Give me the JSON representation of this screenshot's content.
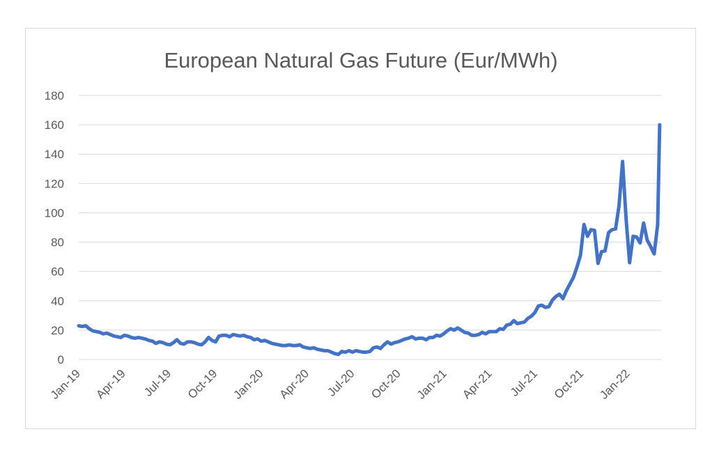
{
  "chart_data": {
    "type": "line",
    "title": "European Natural Gas Future (Eur/MWh)",
    "xlabel": "",
    "ylabel": "",
    "ylim": [
      0,
      180
    ],
    "y_ticks": [
      "0",
      "20",
      "40",
      "60",
      "80",
      "100",
      "120",
      "140",
      "160",
      "180"
    ],
    "x_tick_labels": [
      "Jan-19",
      "Apr-19",
      "Jul-19",
      "Oct-19",
      "Jan-20",
      "Apr-20",
      "Jul-20",
      "Oct-20",
      "Jan-21",
      "Apr-21",
      "Jul-21",
      "Oct-21",
      "Jan-22"
    ],
    "x_unit": "month",
    "x_start": "2019-01",
    "x_end": "2022-03",
    "grid": true,
    "legend": "none",
    "series": [
      {
        "color": "#4472c4",
        "points": [
          [
            "2019-01-01",
            23
          ],
          [
            "2019-01-08",
            22.5
          ],
          [
            "2019-01-15",
            23
          ],
          [
            "2019-01-22",
            21
          ],
          [
            "2019-01-29",
            19.5
          ],
          [
            "2019-02-05",
            19
          ],
          [
            "2019-02-12",
            18.5
          ],
          [
            "2019-02-19",
            17.5
          ],
          [
            "2019-02-26",
            18
          ],
          [
            "2019-03-05",
            17
          ],
          [
            "2019-03-12",
            16
          ],
          [
            "2019-03-19",
            15.5
          ],
          [
            "2019-03-26",
            15
          ],
          [
            "2019-04-02",
            16.5
          ],
          [
            "2019-04-09",
            16
          ],
          [
            "2019-04-16",
            15
          ],
          [
            "2019-04-23",
            14.5
          ],
          [
            "2019-04-30",
            15
          ],
          [
            "2019-05-07",
            14.5
          ],
          [
            "2019-05-14",
            14
          ],
          [
            "2019-05-21",
            13
          ],
          [
            "2019-05-28",
            12.5
          ],
          [
            "2019-06-04",
            11
          ],
          [
            "2019-06-11",
            12
          ],
          [
            "2019-06-18",
            11.5
          ],
          [
            "2019-06-25",
            10.5
          ],
          [
            "2019-07-02",
            10
          ],
          [
            "2019-07-09",
            11.5
          ],
          [
            "2019-07-16",
            13.5
          ],
          [
            "2019-07-23",
            11
          ],
          [
            "2019-07-30",
            10.5
          ],
          [
            "2019-08-06",
            12
          ],
          [
            "2019-08-13",
            12
          ],
          [
            "2019-08-20",
            11.5
          ],
          [
            "2019-08-27",
            10.5
          ],
          [
            "2019-09-03",
            10
          ],
          [
            "2019-09-10",
            12
          ],
          [
            "2019-09-17",
            15
          ],
          [
            "2019-09-24",
            13
          ],
          [
            "2019-10-01",
            12
          ],
          [
            "2019-10-08",
            16
          ],
          [
            "2019-10-15",
            16.5
          ],
          [
            "2019-10-22",
            16.5
          ],
          [
            "2019-10-29",
            15.5
          ],
          [
            "2019-11-05",
            17
          ],
          [
            "2019-11-12",
            16.5
          ],
          [
            "2019-11-19",
            16
          ],
          [
            "2019-11-26",
            16.5
          ],
          [
            "2019-12-03",
            15.5
          ],
          [
            "2019-12-10",
            15
          ],
          [
            "2019-12-17",
            13.5
          ],
          [
            "2019-12-24",
            14
          ],
          [
            "2019-12-31",
            12.5
          ],
          [
            "2020-01-07",
            13
          ],
          [
            "2020-01-14",
            12
          ],
          [
            "2020-01-21",
            11
          ],
          [
            "2020-01-28",
            10.5
          ],
          [
            "2020-02-04",
            10
          ],
          [
            "2020-02-11",
            9.5
          ],
          [
            "2020-02-18",
            9.5
          ],
          [
            "2020-02-25",
            10
          ],
          [
            "2020-03-03",
            9.5
          ],
          [
            "2020-03-10",
            9.5
          ],
          [
            "2020-03-17",
            10
          ],
          [
            "2020-03-24",
            8.5
          ],
          [
            "2020-03-31",
            8
          ],
          [
            "2020-04-07",
            7.5
          ],
          [
            "2020-04-14",
            8
          ],
          [
            "2020-04-21",
            7
          ],
          [
            "2020-04-28",
            6.5
          ],
          [
            "2020-05-05",
            6
          ],
          [
            "2020-05-12",
            6
          ],
          [
            "2020-05-19",
            5
          ],
          [
            "2020-05-26",
            4
          ],
          [
            "2020-06-02",
            3.5
          ],
          [
            "2020-06-09",
            5.5
          ],
          [
            "2020-06-16",
            5
          ],
          [
            "2020-06-23",
            6
          ],
          [
            "2020-06-30",
            5
          ],
          [
            "2020-07-07",
            6
          ],
          [
            "2020-07-14",
            5.5
          ],
          [
            "2020-07-21",
            5
          ],
          [
            "2020-07-28",
            5
          ],
          [
            "2020-08-04",
            5.5
          ],
          [
            "2020-08-11",
            8
          ],
          [
            "2020-08-18",
            8.5
          ],
          [
            "2020-08-25",
            7.5
          ],
          [
            "2020-09-01",
            10
          ],
          [
            "2020-09-08",
            12
          ],
          [
            "2020-09-15",
            10.5
          ],
          [
            "2020-09-22",
            11.5
          ],
          [
            "2020-09-29",
            12
          ],
          [
            "2020-10-06",
            13
          ],
          [
            "2020-10-13",
            14
          ],
          [
            "2020-10-20",
            14.5
          ],
          [
            "2020-10-27",
            15.5
          ],
          [
            "2020-11-03",
            14
          ],
          [
            "2020-11-10",
            14.5
          ],
          [
            "2020-11-17",
            14.5
          ],
          [
            "2020-11-24",
            13.5
          ],
          [
            "2020-12-01",
            15
          ],
          [
            "2020-12-08",
            15
          ],
          [
            "2020-12-15",
            16.5
          ],
          [
            "2020-12-22",
            16
          ],
          [
            "2020-12-29",
            17.5
          ],
          [
            "2021-01-05",
            19.5
          ],
          [
            "2021-01-12",
            21
          ],
          [
            "2021-01-19",
            20
          ],
          [
            "2021-01-26",
            21.5
          ],
          [
            "2021-02-02",
            20
          ],
          [
            "2021-02-09",
            18.5
          ],
          [
            "2021-02-16",
            18
          ],
          [
            "2021-02-23",
            16.5
          ],
          [
            "2021-03-02",
            16.5
          ],
          [
            "2021-03-09",
            17
          ],
          [
            "2021-03-16",
            18.5
          ],
          [
            "2021-03-23",
            17.5
          ],
          [
            "2021-03-30",
            19
          ],
          [
            "2021-04-06",
            19
          ],
          [
            "2021-04-13",
            19
          ],
          [
            "2021-04-20",
            21
          ],
          [
            "2021-04-27",
            20.5
          ],
          [
            "2021-05-04",
            23.5
          ],
          [
            "2021-05-11",
            24
          ],
          [
            "2021-05-18",
            26.5
          ],
          [
            "2021-05-25",
            24.5
          ],
          [
            "2021-06-01",
            25
          ],
          [
            "2021-06-08",
            25.5
          ],
          [
            "2021-06-15",
            28
          ],
          [
            "2021-06-22",
            29.5
          ],
          [
            "2021-06-29",
            32
          ],
          [
            "2021-07-06",
            36.5
          ],
          [
            "2021-07-13",
            37
          ],
          [
            "2021-07-20",
            35.5
          ],
          [
            "2021-07-27",
            36
          ],
          [
            "2021-08-03",
            40.5
          ],
          [
            "2021-08-10",
            43
          ],
          [
            "2021-08-17",
            44.5
          ],
          [
            "2021-08-24",
            41.5
          ],
          [
            "2021-08-31",
            47
          ],
          [
            "2021-09-07",
            51.5
          ],
          [
            "2021-09-14",
            56
          ],
          [
            "2021-09-21",
            63
          ],
          [
            "2021-09-28",
            71
          ],
          [
            "2021-10-05",
            92
          ],
          [
            "2021-10-12",
            84
          ],
          [
            "2021-10-19",
            88.5
          ],
          [
            "2021-10-26",
            88
          ],
          [
            "2021-11-02",
            65.5
          ],
          [
            "2021-11-09",
            73.5
          ],
          [
            "2021-11-16",
            74
          ],
          [
            "2021-11-23",
            86.5
          ],
          [
            "2021-11-30",
            88.5
          ],
          [
            "2021-12-07",
            89
          ],
          [
            "2021-12-14",
            105
          ],
          [
            "2021-12-21",
            135
          ],
          [
            "2021-12-28",
            96
          ],
          [
            "2022-01-04",
            66
          ],
          [
            "2022-01-11",
            84
          ],
          [
            "2022-01-18",
            83.5
          ],
          [
            "2022-01-25",
            79.5
          ],
          [
            "2022-02-01",
            93
          ],
          [
            "2022-02-08",
            81.5
          ],
          [
            "2022-02-15",
            77
          ],
          [
            "2022-02-22",
            72
          ],
          [
            "2022-03-01",
            92
          ],
          [
            "2022-03-05",
            160
          ]
        ]
      }
    ]
  }
}
